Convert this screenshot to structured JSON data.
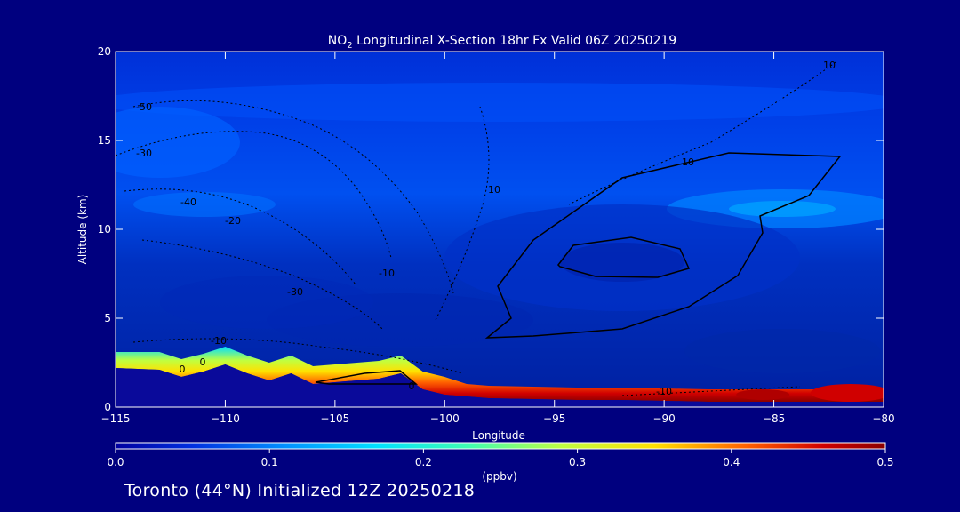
{
  "chart_data": {
    "type": "heatmap",
    "title_main": "NO",
    "title_sub": "2",
    "title_rest": " Longitudinal X-Section 18hr  Fx Valid 06Z 20250219",
    "xlabel": "Longitude",
    "ylabel": "Altitude (km)",
    "xlim": [
      -115,
      -80
    ],
    "ylim": [
      0,
      20
    ],
    "x_ticks": [
      -115,
      -110,
      -105,
      -100,
      -95,
      -90,
      -85,
      -80
    ],
    "x_tick_labels": [
      "−115",
      "−110",
      "−105",
      "−100",
      "−95",
      "−90",
      "−85",
      "−80"
    ],
    "y_ticks": [
      0,
      5,
      10,
      15,
      20
    ],
    "y_tick_labels": [
      "0",
      "5",
      "10",
      "15",
      "20"
    ],
    "colorbar": {
      "label": "(ppbv)",
      "range": [
        0.0,
        0.5
      ],
      "ticks": [
        0.0,
        0.1,
        0.2,
        0.3,
        0.4,
        0.5
      ],
      "tick_labels": [
        "0.0",
        "0.1",
        "0.2",
        "0.3",
        "0.4",
        "0.5"
      ],
      "colors": [
        "#0000a0",
        "#0030e0",
        "#0090ff",
        "#00e0ff",
        "#40ffb0",
        "#c0ff40",
        "#ffe000",
        "#ff6000",
        "#d00000",
        "#8b0000"
      ]
    },
    "surface_terrain_km": {
      "x": [
        -115,
        -113,
        -112,
        -111,
        -110,
        -109,
        -108,
        -107,
        -106,
        -105,
        -104,
        -103,
        -102,
        -101,
        -100,
        -99,
        -98,
        -96,
        -94,
        -92,
        -90,
        -88,
        -86,
        -84,
        -82,
        -80
      ],
      "y": [
        2.2,
        2.1,
        1.7,
        2.0,
        2.4,
        1.9,
        1.5,
        1.9,
        1.3,
        1.4,
        1.5,
        1.6,
        1.9,
        1.0,
        0.7,
        0.6,
        0.5,
        0.45,
        0.4,
        0.4,
        0.35,
        0.3,
        0.3,
        0.3,
        0.3,
        0.3
      ]
    },
    "contour_labels": [
      "-50",
      "-30",
      "-40",
      "-30",
      "-20",
      "-10",
      "-10",
      "0",
      "0",
      "0",
      "10",
      "10",
      "10",
      "-10"
    ]
  },
  "footer": "Toronto (44°N) Initialized 12Z 20250218"
}
